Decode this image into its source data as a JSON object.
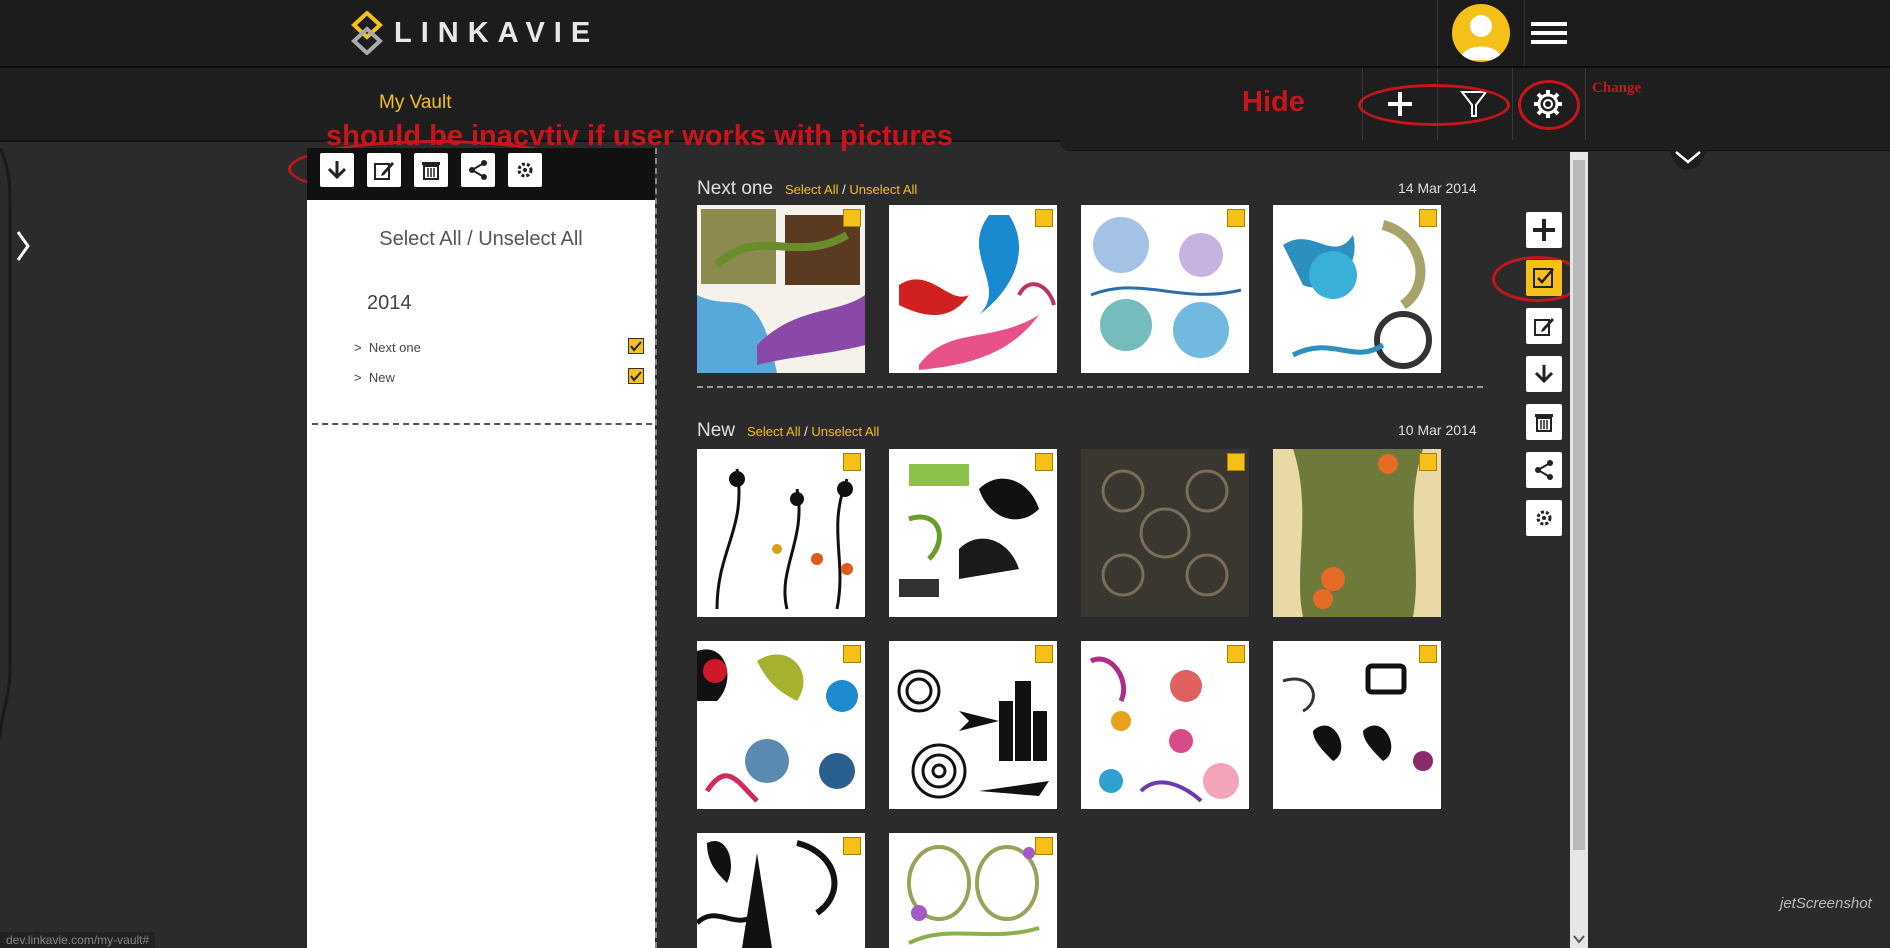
{
  "header": {
    "logo_text": "LINKAVIE",
    "avatar_icon": "user-avatar-icon",
    "menu_icon": "hamburger-menu-icon"
  },
  "subheader": {
    "title": "My Vault",
    "add_icon": "plus-icon",
    "filter_icon": "funnel-filter-icon",
    "settings_icon": "gear-icon"
  },
  "annotations": {
    "hide": "Hide",
    "change": "Change",
    "inactive_note": "should be inacvtiv if user works with pictures"
  },
  "left_toolbar": [
    "download-icon",
    "edit-icon",
    "delete-icon",
    "share-icon",
    "settings-sliders-icon"
  ],
  "left_panel": {
    "select_all": "Select All",
    "slash": "/",
    "unselect_all": "Unselect All",
    "year": "2014",
    "items": [
      {
        "label": "Next one",
        "checked": true
      },
      {
        "label": "New",
        "checked": true
      }
    ]
  },
  "main": {
    "groups": [
      {
        "title": "Next one",
        "select_all": "Select All",
        "unselect_all": "Unselect All",
        "date": "14 Mar 2014",
        "count": 4
      },
      {
        "title": "New",
        "select_all": "Select All",
        "unselect_all": "Unselect All",
        "date": "10 Mar 2014",
        "count": 10
      }
    ]
  },
  "right_toolbar": [
    "plus-icon",
    "select-check-icon",
    "edit-icon",
    "download-icon",
    "delete-icon",
    "share-icon",
    "settings-sliders-icon"
  ],
  "colors": {
    "accent": "#f5c017",
    "annotation": "#c8151b",
    "background": "#2b2b2b"
  },
  "status_url": "dev.linkavie.com/my-vault#",
  "watermark": "jetScreenshot"
}
